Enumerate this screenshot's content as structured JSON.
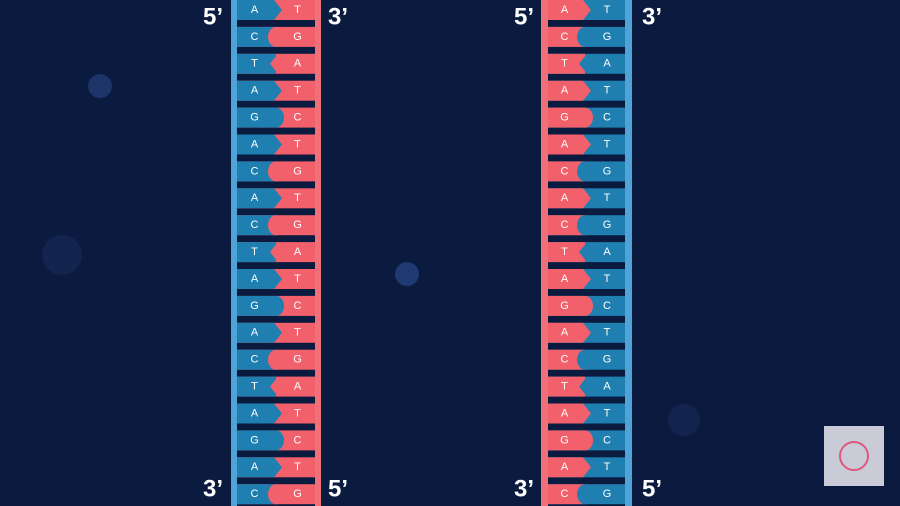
{
  "ladders": [
    {
      "top_labels": [
        "5’",
        "3’"
      ],
      "bottom_labels": [
        "3’",
        "5’"
      ],
      "pairs": [
        [
          "A",
          "T"
        ],
        [
          "C",
          "G"
        ],
        [
          "T",
          "A"
        ],
        [
          "A",
          "T"
        ],
        [
          "G",
          "C"
        ],
        [
          "A",
          "T"
        ],
        [
          "C",
          "G"
        ],
        [
          "A",
          "T"
        ],
        [
          "C",
          "G"
        ],
        [
          "T",
          "A"
        ],
        [
          "A",
          "T"
        ],
        [
          "G",
          "C"
        ],
        [
          "A",
          "T"
        ],
        [
          "C",
          "G"
        ],
        [
          "T",
          "A"
        ],
        [
          "A",
          "T"
        ],
        [
          "G",
          "C"
        ],
        [
          "A",
          "T"
        ],
        [
          "C",
          "G"
        ]
      ]
    },
    {
      "top_labels": [
        "5’",
        "3’"
      ],
      "bottom_labels": [
        "3’",
        "5’"
      ],
      "pairs": [
        [
          "A",
          "T"
        ],
        [
          "C",
          "G"
        ],
        [
          "T",
          "A"
        ],
        [
          "A",
          "T"
        ],
        [
          "G",
          "C"
        ],
        [
          "A",
          "T"
        ],
        [
          "C",
          "G"
        ],
        [
          "A",
          "T"
        ],
        [
          "C",
          "G"
        ],
        [
          "T",
          "A"
        ],
        [
          "A",
          "T"
        ],
        [
          "G",
          "C"
        ],
        [
          "A",
          "T"
        ],
        [
          "C",
          "G"
        ],
        [
          "T",
          "A"
        ],
        [
          "A",
          "T"
        ],
        [
          "G",
          "C"
        ],
        [
          "A",
          "T"
        ],
        [
          "C",
          "G"
        ]
      ]
    }
  ]
}
